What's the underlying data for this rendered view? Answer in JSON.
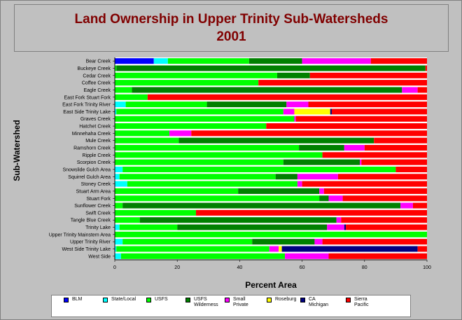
{
  "chart_data": {
    "type": "bar",
    "orientation": "horizontal",
    "stacked": true,
    "title": "Land Ownership in Upper Trinity Sub-Watersheds\n2001",
    "xlabel": "Percent Area",
    "ylabel": "Sub-Watershed",
    "xlim": [
      0,
      100
    ],
    "xticks": [
      "0",
      "20",
      "40",
      "60",
      "80",
      "100"
    ],
    "legend_position": "bottom",
    "grid": false,
    "categories": [
      "Bear Creek",
      "Buckeye Creek",
      "Cedar Creek",
      "Coffee Creek",
      "Eagle Creek",
      "East Fork Stuart Fork",
      "East Fork Trinity River",
      "East Side Trinity Lake",
      "Graves Creek",
      "Hatchet Creek",
      "Minnehaha Creek",
      "Mule Creek",
      "Ramshorn Creek",
      "Ripple Creek",
      "Scorpion Creek",
      "Snowslide Gulch Area",
      "Squirrel Gulch Area",
      "Stoney Creek",
      "Stuart Arm Area",
      "Stuart Fork",
      "Sunflower Creek",
      "Swift Creek",
      "Tangle Blue Creek",
      "Trinity Lake",
      "Upper Trinity Mainstem Area",
      "Upper Trinity River",
      "West Side Trinity Lake",
      "West Side"
    ],
    "series": [
      {
        "name": "BLM",
        "color": "#0000ff",
        "values": [
          12.5,
          0,
          0,
          0,
          0,
          0,
          0,
          0,
          0,
          0,
          0,
          0,
          0,
          0,
          0,
          0,
          0,
          0,
          0,
          0,
          0,
          0,
          0,
          0,
          0,
          0,
          0,
          0
        ]
      },
      {
        "name": "State/Local",
        "color": "#00ffff",
        "values": [
          4.5,
          0,
          0,
          0,
          0,
          0,
          3.5,
          0.5,
          0,
          0,
          0,
          0,
          0,
          0,
          0,
          2.5,
          1.5,
          4,
          0,
          0,
          0,
          0,
          0,
          1.5,
          0,
          2.5,
          0.5,
          2
        ]
      },
      {
        "name": "USFS",
        "color": "#00ff00",
        "values": [
          26,
          0.5,
          52,
          46,
          5.5,
          10.5,
          26,
          53.5,
          57.5,
          48.5,
          17.5,
          20.5,
          59,
          66.5,
          54,
          87.5,
          50,
          54.5,
          39.5,
          65.5,
          2.5,
          26,
          8,
          18.5,
          100,
          41.5,
          49,
          52.5
        ]
      },
      {
        "name": "USFS Wilderness",
        "color": "#008000",
        "values": [
          17,
          99,
          10.5,
          0,
          86.5,
          0,
          25.5,
          0,
          0,
          0,
          0,
          62.5,
          14.5,
          0,
          24.5,
          0,
          7,
          0,
          26,
          3,
          89,
          0,
          63,
          48,
          0,
          20,
          0,
          0
        ]
      },
      {
        "name": "Small Private",
        "color": "#ff00ff",
        "values": [
          22,
          0,
          0,
          0,
          5,
          0,
          7,
          3.5,
          0.5,
          0,
          7,
          0,
          6.5,
          0,
          0.5,
          0,
          13,
          1.5,
          1.5,
          4.5,
          4,
          0,
          1.5,
          5.5,
          0,
          2.5,
          3,
          14
        ]
      },
      {
        "name": "Roseburg",
        "color": "#ffff00",
        "values": [
          0,
          0,
          0,
          0,
          0,
          0,
          0,
          11.5,
          0,
          0,
          0,
          0,
          0,
          0,
          0,
          0,
          0,
          0,
          0,
          0,
          0,
          0,
          0,
          0,
          0,
          0,
          1,
          0
        ]
      },
      {
        "name": "CA Michigan",
        "color": "#000080",
        "values": [
          0,
          0,
          0,
          0,
          0,
          0,
          0,
          0.5,
          0,
          0,
          0,
          0,
          0,
          0,
          0,
          0,
          0,
          0,
          0,
          0,
          0,
          0,
          0,
          0.5,
          0,
          0,
          43.5,
          0
        ]
      },
      {
        "name": "Sierra Pacific",
        "color": "#ff0000",
        "values": [
          18,
          0.5,
          37.5,
          54,
          3,
          89.5,
          38,
          30.5,
          42,
          51.5,
          75.5,
          17,
          20,
          33.5,
          21,
          10,
          28.5,
          40,
          33,
          27,
          4.5,
          74,
          27.5,
          26,
          0,
          33.5,
          3,
          31.5
        ]
      }
    ]
  },
  "legend": [
    {
      "label": "BLM",
      "color": "#0000ff"
    },
    {
      "label": "State/Local",
      "color": "#00ffff"
    },
    {
      "label": "USFS",
      "color": "#00ff00"
    },
    {
      "label": "USFS\nWilderness",
      "color": "#008000"
    },
    {
      "label": "Small Private",
      "color": "#ff00ff"
    },
    {
      "label": "Roseburg",
      "color": "#ffff00"
    },
    {
      "label": "CA Michigan",
      "color": "#000080"
    },
    {
      "label": "Sierra\nPacific",
      "color": "#ff0000"
    }
  ]
}
